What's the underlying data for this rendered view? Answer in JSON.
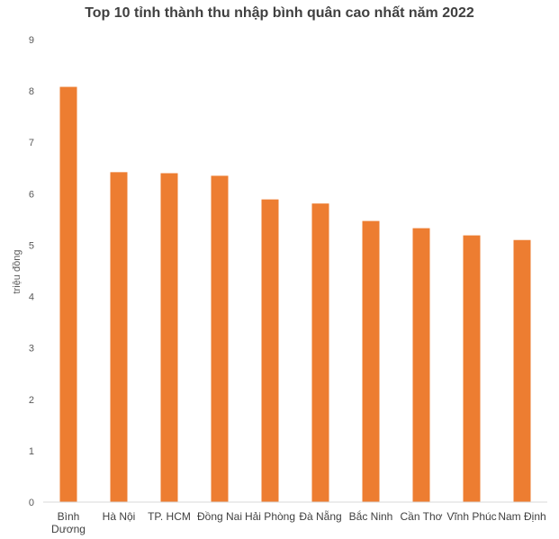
{
  "chart_data": {
    "type": "bar",
    "title": "Top 10 tỉnh thành thu nhập bình quân cao nhất năm 2022",
    "ylabel": "triệu đồng",
    "xlabel": "",
    "categories": [
      "Bình Dương",
      "Hà Nội",
      "TP. HCM",
      "Đồng Nai",
      "Hải Phòng",
      "Đà Nẵng",
      "Bắc Ninh",
      "Cần Thơ",
      "Vĩnh Phúc",
      "Nam Định"
    ],
    "category_lines": [
      [
        "Bình",
        "Dương"
      ],
      [
        "Hà Nội"
      ],
      [
        "TP. HCM"
      ],
      [
        "Đồng Nai"
      ],
      [
        "Hải Phòng"
      ],
      [
        "Đà Nẵng"
      ],
      [
        "Bắc Ninh"
      ],
      [
        "Cần Thơ"
      ],
      [
        "Vĩnh Phúc"
      ],
      [
        "Nam Định"
      ]
    ],
    "values": [
      8.08,
      6.42,
      6.4,
      6.35,
      5.89,
      5.81,
      5.47,
      5.33,
      5.19,
      5.1
    ],
    "yticks": [
      "0",
      "1",
      "2",
      "3",
      "4",
      "5",
      "6",
      "7",
      "8",
      "9"
    ],
    "ylim": [
      0,
      9
    ],
    "grid": false,
    "legend": "none",
    "bar_color": "#ED7D31"
  }
}
